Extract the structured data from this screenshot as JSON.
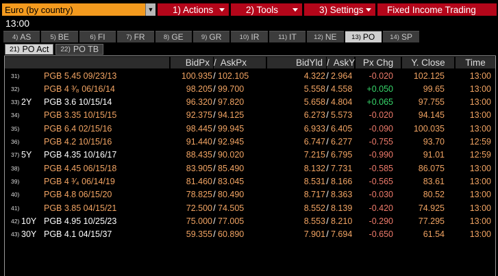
{
  "header": {
    "country_select": "Euro (by country)",
    "menu": [
      {
        "label": "1) Actions",
        "caret": true
      },
      {
        "label": "2) Tools",
        "caret": true
      },
      {
        "label": "3) Settings",
        "caret": true
      },
      {
        "label": "Fixed Income Trading",
        "caret": false
      }
    ],
    "clock": "13:00"
  },
  "tabs": [
    {
      "num": "4)",
      "label": "AS"
    },
    {
      "num": "5)",
      "label": "BE"
    },
    {
      "num": "6)",
      "label": "FI"
    },
    {
      "num": "7)",
      "label": "FR"
    },
    {
      "num": "8)",
      "label": "GE"
    },
    {
      "num": "9)",
      "label": "GR"
    },
    {
      "num": "10)",
      "label": "IR"
    },
    {
      "num": "11)",
      "label": "IT"
    },
    {
      "num": "12)",
      "label": "NE"
    },
    {
      "num": "13)",
      "label": "PO",
      "active": true
    },
    {
      "num": "14)",
      "label": "SP"
    }
  ],
  "subtabs": [
    {
      "num": "21)",
      "label": "PO Act",
      "active": true
    },
    {
      "num": "22)",
      "label": "PO TB"
    }
  ],
  "columns": {
    "bid_px": "BidPx",
    "ask_px": "AskPx",
    "bid_yld": "BidYld",
    "ask_yld": "AskYld",
    "px_chg": "Px Chg",
    "y_close": "Y. Close",
    "time": "Time",
    "slash": "/"
  },
  "rows": [
    {
      "idx": "31)",
      "tenor": "",
      "name": "PGB 5.45 09/23/13",
      "color": "orange",
      "bid": "100.935",
      "ask": "102.105",
      "byld": "4.322",
      "ayld": "2.964",
      "chg": "-0.020",
      "close": "102.125",
      "time": "13:00"
    },
    {
      "idx": "32)",
      "tenor": "",
      "name": "PGB 4 ³⁄₈ 06/16/14",
      "color": "orange",
      "bid": "98.205",
      "ask": "99.700",
      "byld": "5.558",
      "ayld": "4.558",
      "chg": "+0.050",
      "close": "99.65",
      "time": "13:00"
    },
    {
      "idx": "33)",
      "tenor": "2Y",
      "name": "PGB 3.6 10/15/14",
      "color": "white",
      "bid": "96.320",
      "ask": "97.820",
      "byld": "5.658",
      "ayld": "4.804",
      "chg": "+0.065",
      "close": "97.755",
      "time": "13:00"
    },
    {
      "idx": "34)",
      "tenor": "",
      "name": "PGB 3.35 10/15/15",
      "color": "orange",
      "bid": "92.375",
      "ask": "94.125",
      "byld": "6.273",
      "ayld": "5.573",
      "chg": "-0.020",
      "close": "94.145",
      "time": "13:00"
    },
    {
      "idx": "35)",
      "tenor": "",
      "name": "PGB 6.4 02/15/16",
      "color": "orange",
      "bid": "98.445",
      "ask": "99.945",
      "byld": "6.933",
      "ayld": "6.405",
      "chg": "-0.090",
      "close": "100.035",
      "time": "13:00"
    },
    {
      "idx": "36)",
      "tenor": "",
      "name": "PGB 4.2 10/15/16",
      "color": "orange",
      "bid": "91.440",
      "ask": "92.945",
      "byld": "6.747",
      "ayld": "6.277",
      "chg": "-0.755",
      "close": "93.70",
      "time": "12:59"
    },
    {
      "idx": "37)",
      "tenor": "5Y",
      "name": "PGB 4.35 10/16/17",
      "color": "white",
      "bid": "88.435",
      "ask": "90.020",
      "byld": "7.215",
      "ayld": "6.795",
      "chg": "-0.990",
      "close": "91.01",
      "time": "12:59"
    },
    {
      "idx": "38)",
      "tenor": "",
      "name": "PGB 4.45 06/15/18",
      "color": "orange",
      "bid": "83.905",
      "ask": "85.490",
      "byld": "8.132",
      "ayld": "7.731",
      "chg": "-0.585",
      "close": "86.075",
      "time": "13:00"
    },
    {
      "idx": "39)",
      "tenor": "",
      "name": "PGB 4 ³⁄₄ 06/14/19",
      "color": "orange",
      "bid": "81.460",
      "ask": "83.045",
      "byld": "8.531",
      "ayld": "8.166",
      "chg": "-0.565",
      "close": "83.61",
      "time": "13:00"
    },
    {
      "idx": "40)",
      "tenor": "",
      "name": "PGB 4.8 06/15/20",
      "color": "orange",
      "bid": "78.825",
      "ask": "80.490",
      "byld": "8.717",
      "ayld": "8.363",
      "chg": "-0.030",
      "close": "80.52",
      "time": "13:00"
    },
    {
      "idx": "41)",
      "tenor": "",
      "name": "PGB 3.85 04/15/21",
      "color": "orange",
      "bid": "72.500",
      "ask": "74.505",
      "byld": "8.552",
      "ayld": "8.139",
      "chg": "-0.420",
      "close": "74.925",
      "time": "13:00"
    },
    {
      "idx": "42)",
      "tenor": "10Y",
      "name": "PGB 4.95 10/25/23",
      "color": "white",
      "bid": "75.000",
      "ask": "77.005",
      "byld": "8.553",
      "ayld": "8.210",
      "chg": "-0.290",
      "close": "77.295",
      "time": "13:00"
    },
    {
      "idx": "43)",
      "tenor": "30Y",
      "name": "PGB 4.1 04/15/37",
      "color": "white",
      "bid": "59.355",
      "ask": "60.890",
      "byld": "7.901",
      "ayld": "7.694",
      "chg": "-0.650",
      "close": "61.54",
      "time": "13:00"
    }
  ]
}
